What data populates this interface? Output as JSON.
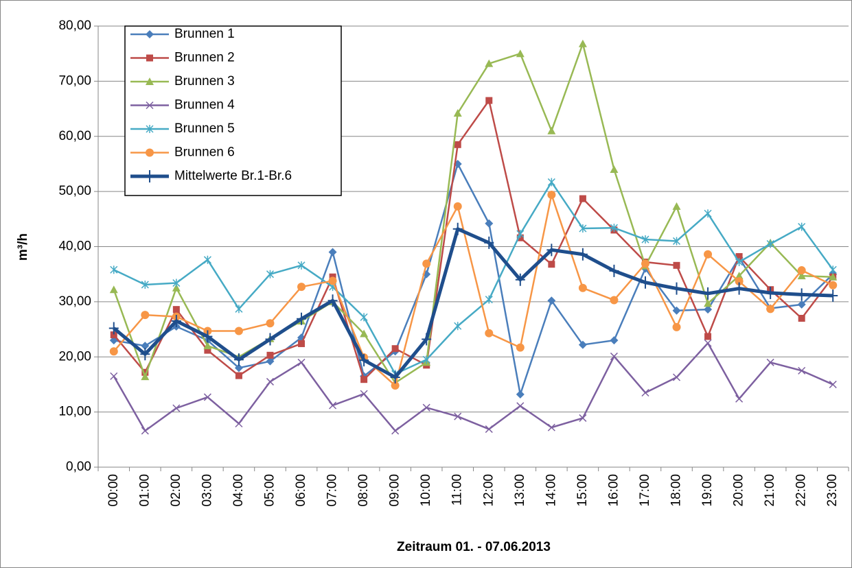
{
  "chart_data": {
    "type": "line",
    "y_label": "m³/h",
    "x_label": "Zeitraum 01. - 07.06.2013",
    "categories": [
      "00:00",
      "01:00",
      "02:00",
      "03:00",
      "04:00",
      "05:00",
      "06:00",
      "07:00",
      "08:00",
      "09:00",
      "10:00",
      "11:00",
      "12:00",
      "13:00",
      "14:00",
      "15:00",
      "16:00",
      "17:00",
      "18:00",
      "19:00",
      "20:00",
      "21:00",
      "22:00",
      "23:00"
    ],
    "ylim": [
      0,
      80
    ],
    "yticks": [
      {
        "value": 0,
        "label": "0,00"
      },
      {
        "value": 10,
        "label": "10,00"
      },
      {
        "value": 20,
        "label": "20,00"
      },
      {
        "value": 30,
        "label": "30,00"
      },
      {
        "value": 40,
        "label": "40,00"
      },
      {
        "value": 50,
        "label": "50,00"
      },
      {
        "value": 60,
        "label": "60,00"
      },
      {
        "value": 70,
        "label": "70,00"
      },
      {
        "value": 80,
        "label": "80,00"
      }
    ],
    "grid": true,
    "legend": "top-left",
    "series": [
      {
        "name": "Brunnen 1",
        "color": "#4a7ebb",
        "marker": "diamond",
        "values": [
          23.0,
          22.0,
          25.5,
          23.0,
          18.0,
          19.2,
          23.5,
          39.0,
          16.5,
          21.0,
          35.0,
          55.0,
          44.2,
          13.2,
          30.2,
          22.2,
          23.0,
          36.0,
          28.4,
          28.6,
          38.0,
          28.8,
          29.5,
          35.0
        ]
      },
      {
        "name": "Brunnen 2",
        "color": "#be4b48",
        "marker": "square",
        "values": [
          24.0,
          17.2,
          28.6,
          21.2,
          16.6,
          20.3,
          22.4,
          34.5,
          15.9,
          21.5,
          18.5,
          58.5,
          66.5,
          41.6,
          36.8,
          48.7,
          43.0,
          37.2,
          36.6,
          23.7,
          38.2,
          32.2,
          27.0,
          34.5
        ]
      },
      {
        "name": "Brunnen 3",
        "color": "#98b954",
        "marker": "triangle",
        "values": [
          32.2,
          16.4,
          32.5,
          22.0,
          20.0,
          23.3,
          26.5,
          30.0,
          24.2,
          15.3,
          19.0,
          64.2,
          73.2,
          75.0,
          61.0,
          76.8,
          54.0,
          36.5,
          47.3,
          29.7,
          34.7,
          40.7,
          34.7,
          34.5
        ]
      },
      {
        "name": "Brunnen 4",
        "color": "#7d60a0",
        "marker": "x",
        "values": [
          16.5,
          6.6,
          10.7,
          12.7,
          7.9,
          15.5,
          19.0,
          11.2,
          13.3,
          6.6,
          10.8,
          9.2,
          6.9,
          11.1,
          7.2,
          8.9,
          20.1,
          13.5,
          16.3,
          22.5,
          12.4,
          19.0,
          17.5,
          15.0
        ]
      },
      {
        "name": "Brunnen 5",
        "color": "#46aac5",
        "marker": "star",
        "values": [
          35.8,
          33.1,
          33.4,
          37.6,
          28.7,
          35.0,
          36.6,
          32.7,
          27.2,
          16.9,
          19.5,
          25.6,
          30.4,
          42.3,
          51.7,
          43.3,
          43.4,
          41.3,
          41.0,
          46.0,
          37.2,
          40.5,
          43.6,
          35.8
        ]
      },
      {
        "name": "Brunnen 6",
        "color": "#f79646",
        "marker": "circle",
        "values": [
          21.0,
          27.6,
          27.3,
          24.7,
          24.7,
          26.1,
          32.7,
          33.8,
          19.9,
          14.8,
          36.9,
          47.3,
          24.3,
          21.7,
          49.4,
          32.5,
          30.3,
          36.9,
          25.4,
          38.6,
          33.7,
          28.7,
          35.7,
          33.0
        ]
      },
      {
        "name": "Mittelwerte Br.1-Br.6",
        "color": "#1f4e8c",
        "marker": "plus",
        "line_width": 5,
        "values": [
          25.2,
          20.5,
          26.5,
          23.7,
          19.5,
          23.2,
          26.9,
          30.2,
          19.4,
          16.3,
          23.2,
          43.2,
          40.7,
          34.0,
          39.4,
          38.6,
          35.6,
          33.5,
          32.4,
          31.5,
          32.4,
          31.6,
          31.3,
          31.1
        ]
      }
    ]
  }
}
